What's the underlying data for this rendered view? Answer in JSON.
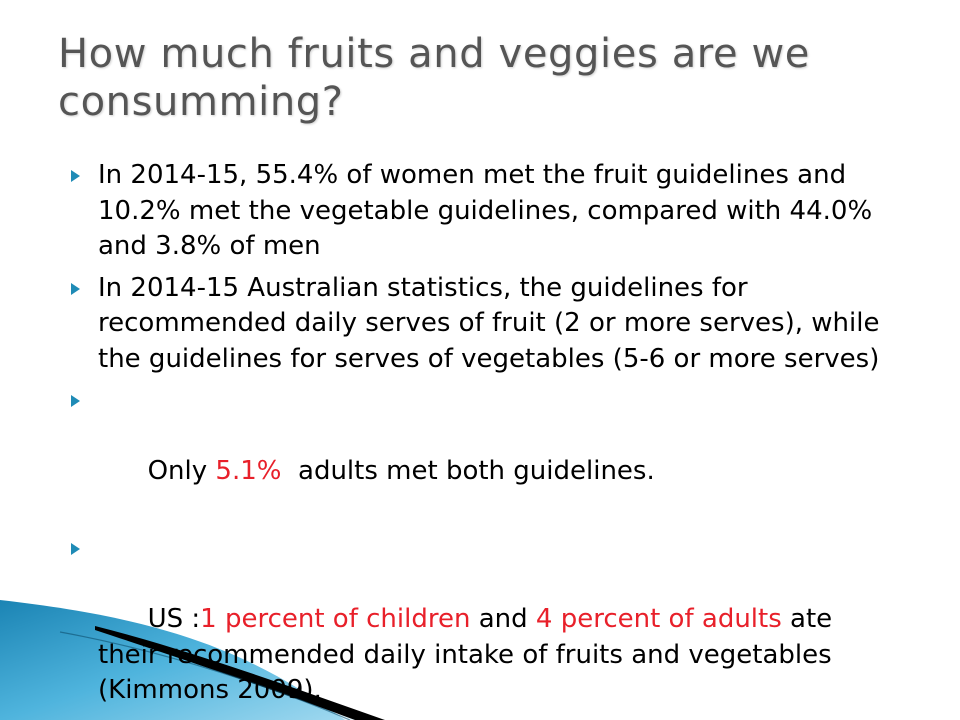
{
  "slide": {
    "title": "How much fruits and veggies are we consumming?",
    "bullets": [
      {
        "text": "In 2014-15, 55.4% of women met the fruit guidelines and 10.2% met the vegetable guidelines, compared with 44.0% and 3.8% of men"
      },
      {
        "text": "In 2014-15 Australian statistics, the guidelines for recommended daily serves of fruit (2 or more serves), while the guidelines for serves of vegetables (5-6 or more serves)"
      },
      {
        "pre": "Only ",
        "highlight": "5.1%",
        "post": "  adults met both guidelines."
      },
      {
        "pre": "US :",
        "highlight1": "1 percent of children",
        "mid": " and ",
        "highlight2": "4 percent of adults",
        "post": " ate their recommended daily intake of fruits and vegetables (Kimmons 2009)."
      }
    ]
  },
  "colors": {
    "title": "#555555",
    "body_text": "#000000",
    "highlight": "#e8202a",
    "bullet_marker": "#1f8bb6",
    "decor_blue": "#2e9fd0",
    "decor_black": "#000000"
  }
}
